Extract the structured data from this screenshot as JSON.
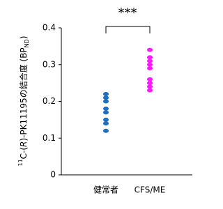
{
  "chart_data": {
    "type": "strip",
    "ylabel": [
      "11",
      "C-(",
      "R",
      ")-PK11195の結合度 (BP",
      "ND",
      ")"
    ],
    "annotation": "***",
    "categories": [
      "健常者",
      "CFS/ME"
    ],
    "colors": [
      "#1f6fbf",
      "#ff1aff"
    ],
    "values": [
      [
        0.22,
        0.21,
        0.2,
        0.18,
        0.17,
        0.15,
        0.14,
        0.12
      ],
      [
        0.34,
        0.32,
        0.31,
        0.3,
        0.29,
        0.26,
        0.25,
        0.24,
        0.23
      ]
    ],
    "ylim": [
      0,
      0.4
    ],
    "yticks": [
      0,
      0.1,
      0.2,
      0.3,
      0.4
    ]
  }
}
